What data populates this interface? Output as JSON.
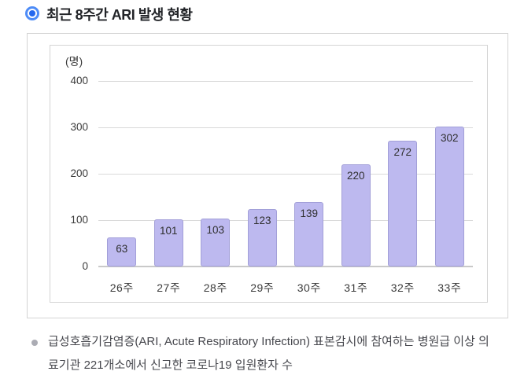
{
  "header": {
    "title": "최근 8주간 ARI 발생 현황"
  },
  "chart_data": {
    "type": "bar",
    "title": "최근 8주간 ARI 발생 현황",
    "unit_label": "(명)",
    "categories": [
      "26주",
      "27주",
      "28주",
      "29주",
      "30주",
      "31주",
      "32주",
      "33주"
    ],
    "values": [
      63,
      101,
      103,
      123,
      139,
      220,
      272,
      302
    ],
    "y_ticks": [
      0,
      100,
      200,
      300,
      400
    ],
    "ylim": [
      0,
      400
    ],
    "xlabel": "",
    "ylabel": "(명)",
    "grid": true,
    "legend": "none",
    "value_label_position": "inside-top"
  },
  "footnote": {
    "text": "급성호흡기감염증(ARI, Acute Respiratory Infection) 표본감시에 참여하는 병원급 이상 의료기관 221개소에서 신고한 코로나19 입원환자 수"
  },
  "colors": {
    "accent_blue": "#4e8cf7",
    "accent_blue_dark": "#2468ee",
    "title_text": "#222428",
    "frame_border": "#d4d4d4",
    "grid": "#d9d9d9",
    "axis_line": "#c9c9c9",
    "bar_fill": "#bdb9ef",
    "bar_border": "#a29fd8",
    "tick_text": "#3b3b3b",
    "value_text": "#2f2f2f",
    "footer_text": "#46474d",
    "foot_bullet": "#abacb4"
  }
}
